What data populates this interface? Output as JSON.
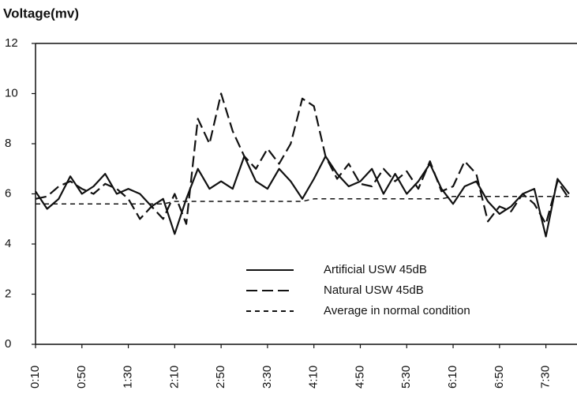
{
  "chart_data": {
    "type": "line",
    "title": "Voltage(mv)",
    "categories": [
      "0:10",
      null,
      null,
      null,
      "0:50",
      null,
      null,
      null,
      "1:30",
      null,
      null,
      null,
      "2:10",
      null,
      null,
      null,
      "2:50",
      null,
      null,
      null,
      "3:30",
      null,
      null,
      null,
      "4:10",
      null,
      null,
      null,
      "4:50",
      null,
      null,
      null,
      "5:30",
      null,
      null,
      null,
      "6:10",
      null,
      null,
      null,
      "6:50",
      null,
      null,
      null,
      "7:30",
      null,
      null
    ],
    "series": [
      {
        "name": "Artificial USW 45dB",
        "color": "#111111",
        "dash": "solid",
        "values": [
          6.1,
          5.4,
          5.8,
          6.7,
          6.0,
          6.3,
          6.8,
          6.0,
          6.2,
          6.0,
          5.5,
          5.8,
          4.4,
          5.8,
          7.0,
          6.2,
          6.5,
          6.2,
          7.5,
          6.5,
          6.2,
          7.0,
          6.5,
          5.8,
          6.6,
          7.5,
          6.8,
          6.3,
          6.5,
          7.0,
          6.0,
          6.8,
          6.0,
          6.5,
          7.2,
          6.2,
          5.6,
          6.3,
          6.5,
          5.7,
          5.2,
          5.5,
          6.0,
          6.2,
          4.3,
          6.6,
          6.0
        ]
      },
      {
        "name": "Natural USW 45dB",
        "color": "#111111",
        "dash": "long",
        "values": [
          5.8,
          5.9,
          6.3,
          6.5,
          6.2,
          6.0,
          6.4,
          6.2,
          5.8,
          5.0,
          5.5,
          5.0,
          6.0,
          4.8,
          9.0,
          8.0,
          10.0,
          8.5,
          7.5,
          7.0,
          7.8,
          7.2,
          8.0,
          9.8,
          9.5,
          7.5,
          6.6,
          7.2,
          6.4,
          6.3,
          7.0,
          6.5,
          6.9,
          6.2,
          7.3,
          6.1,
          6.3,
          7.3,
          6.8,
          4.9,
          5.5,
          5.3,
          6.0,
          5.6,
          4.8,
          6.5,
          5.8
        ]
      },
      {
        "name": "Average in normal condition",
        "color": "#111111",
        "dash": "short",
        "values": [
          5.6,
          5.6,
          5.6,
          5.6,
          5.6,
          5.6,
          5.6,
          5.6,
          5.6,
          5.6,
          5.6,
          5.6,
          5.7,
          5.7,
          5.7,
          5.7,
          5.7,
          5.7,
          5.7,
          5.7,
          5.7,
          5.7,
          5.7,
          5.7,
          5.8,
          5.8,
          5.8,
          5.8,
          5.8,
          5.8,
          5.8,
          5.8,
          5.8,
          5.8,
          5.8,
          5.8,
          5.9,
          5.9,
          5.9,
          5.9,
          5.9,
          5.9,
          5.9,
          5.9,
          5.9,
          5.9,
          5.9
        ]
      }
    ],
    "ylim": [
      0,
      12
    ],
    "yticks": [
      0,
      2,
      4,
      6,
      8,
      10,
      12
    ],
    "grid": false,
    "legend": "lower right"
  }
}
